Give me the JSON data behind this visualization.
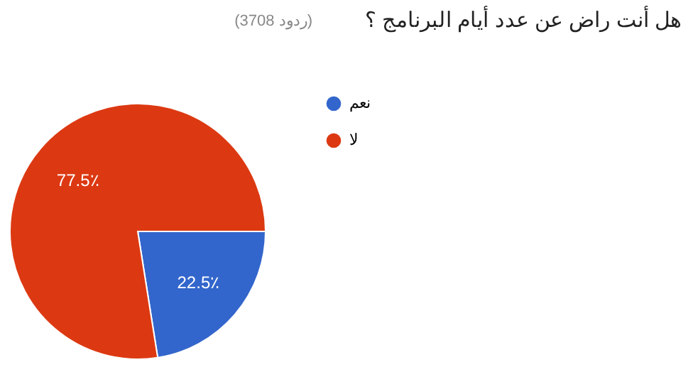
{
  "chart_data": {
    "type": "pie",
    "title": "هل أنت راض عن عدد أيام البرنامج ؟",
    "subtitle": "(3708 ردود)",
    "categories": [
      "نعم",
      "لا"
    ],
    "values": [
      22.5,
      77.5
    ],
    "colors": [
      "#3366cc",
      "#dc3912"
    ],
    "value_labels": [
      "22.5٪",
      "77.5٪"
    ],
    "legend": "right"
  }
}
